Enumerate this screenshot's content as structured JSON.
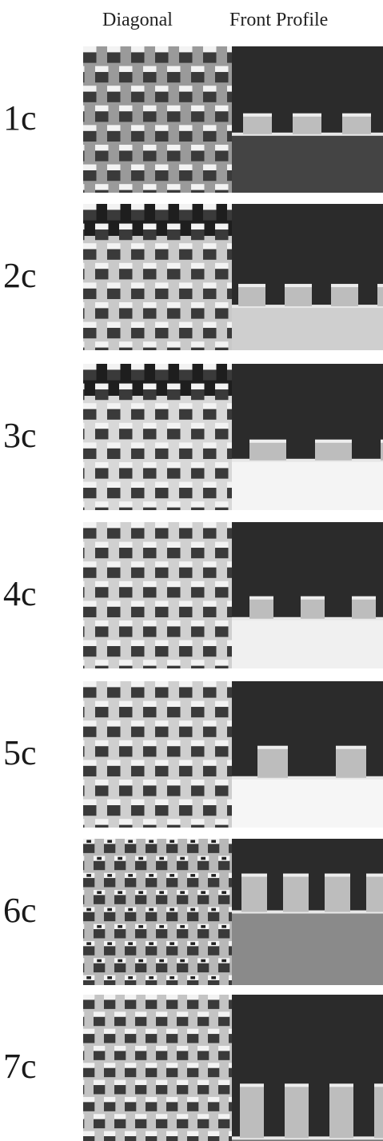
{
  "header": {
    "diagonal": "Diagonal",
    "front": "Front Profile"
  },
  "rows": [
    {
      "label": "1c"
    },
    {
      "label": "2c"
    },
    {
      "label": "3c"
    },
    {
      "label": "4c"
    },
    {
      "label": "5c"
    },
    {
      "label": "6c"
    },
    {
      "label": "7c"
    }
  ],
  "colors": {
    "background": "#ffffff",
    "sem_dark": "#2b2b2b",
    "sem_light": "#e6e6e6"
  }
}
